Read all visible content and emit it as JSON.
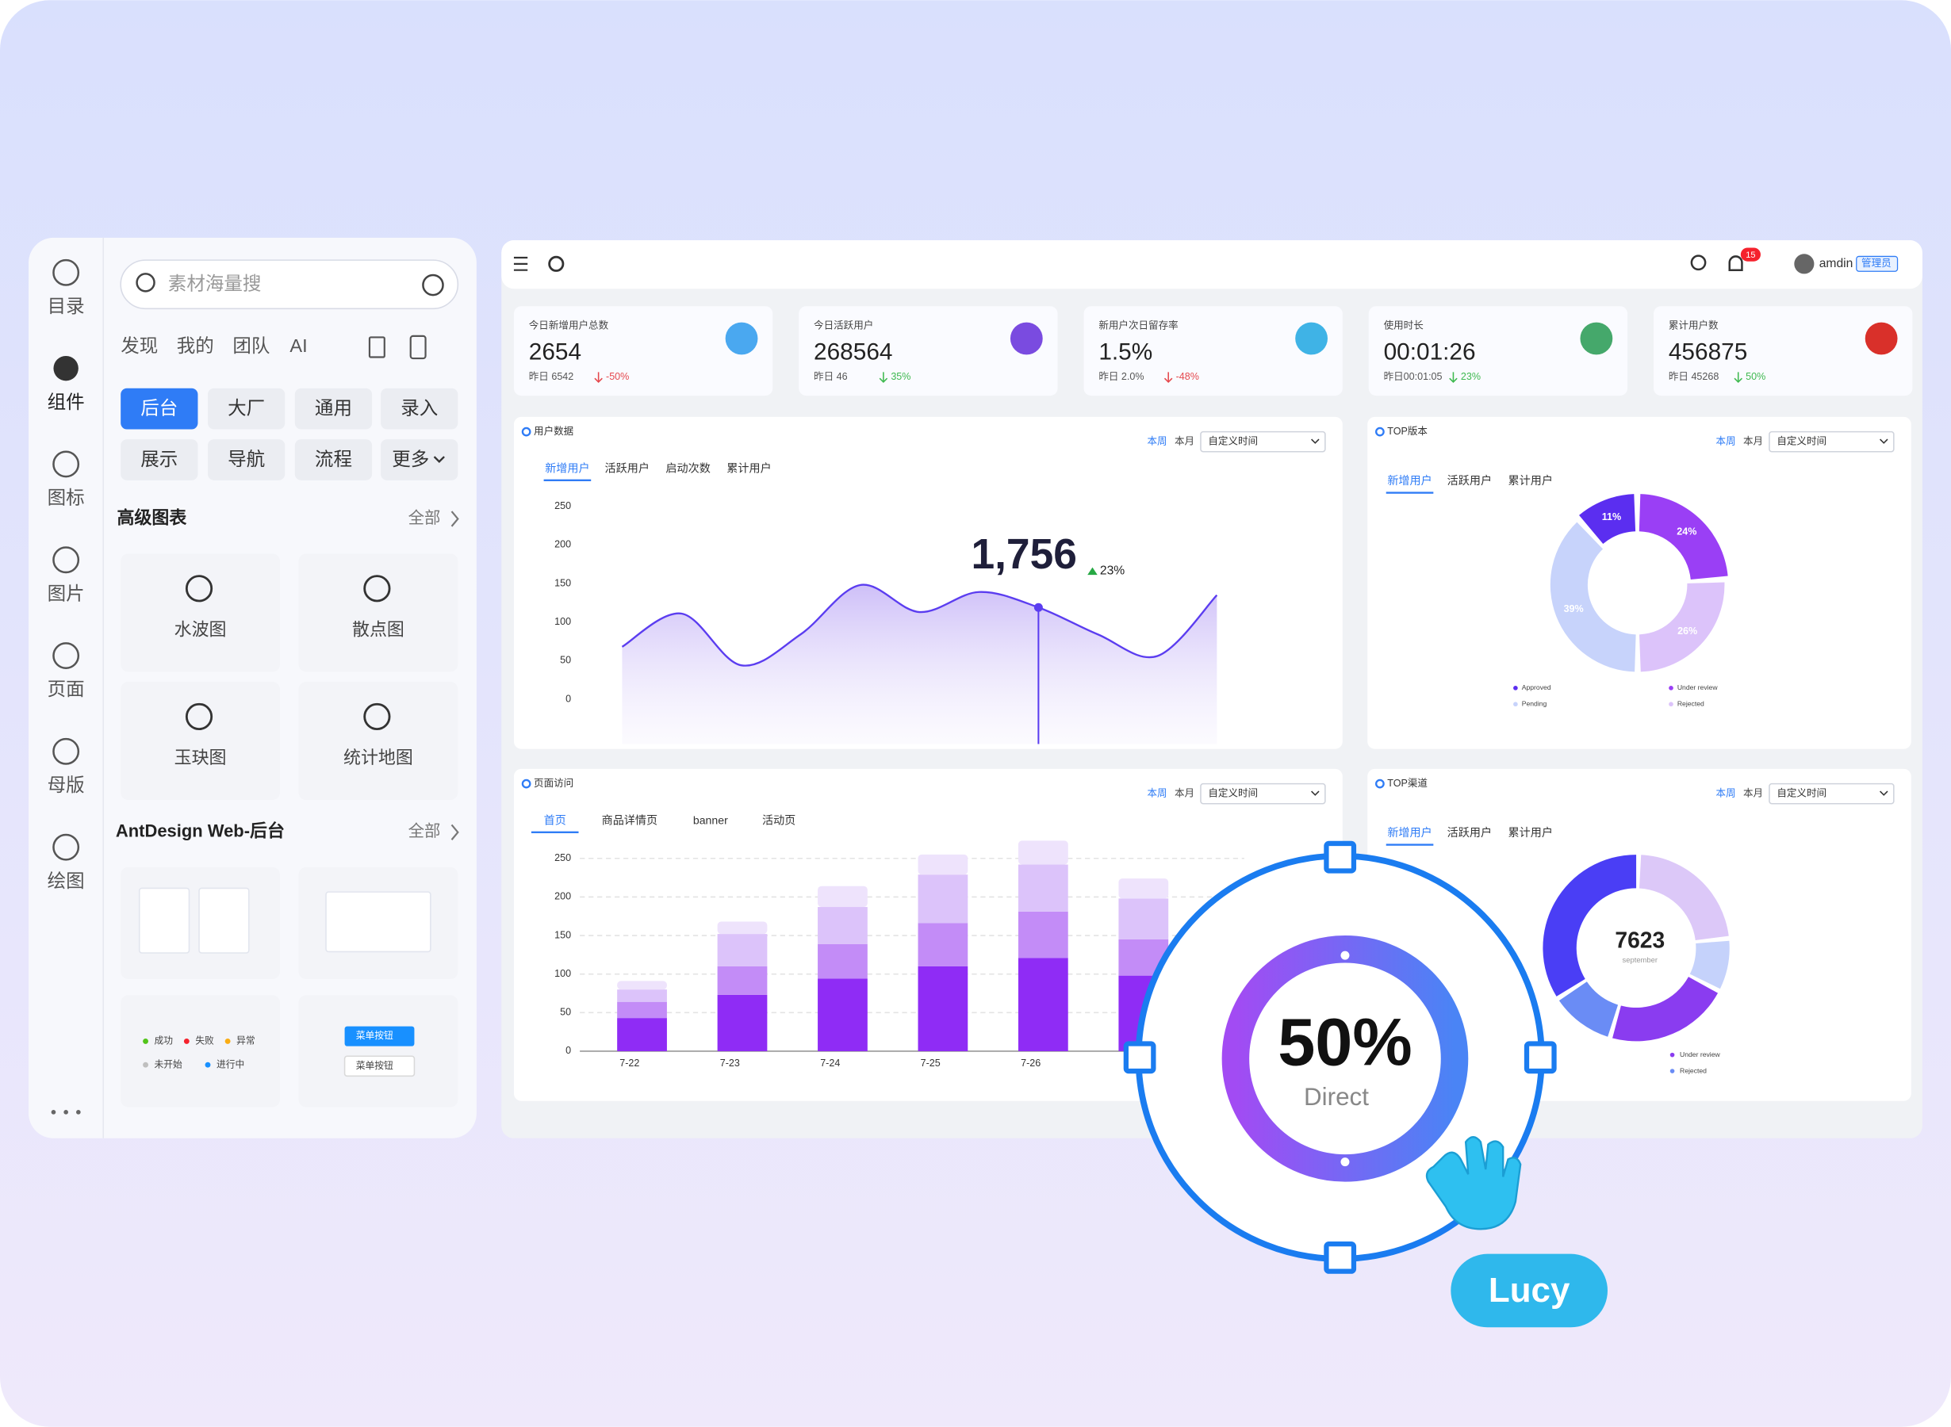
{
  "sidebar": {
    "nav": [
      "目录",
      "组件",
      "图标",
      "图片",
      "页面",
      "母版",
      "绘图"
    ]
  },
  "panel": {
    "search_placeholder": "素材海量搜",
    "tabs": [
      "发现",
      "我的",
      "团队",
      "AI"
    ],
    "chips": [
      "后台",
      "大厂",
      "通用",
      "录入",
      "展示",
      "导航",
      "流程",
      "更多"
    ],
    "section1": {
      "title": "高级图表",
      "all": "全部",
      "items": [
        "水波图",
        "散点图",
        "玉玦图",
        "统计地图"
      ]
    },
    "section2": {
      "title": "AntDesign Web-后台",
      "all": "全部"
    },
    "status_legend": [
      "成功",
      "失败",
      "异常",
      "未开始",
      "进行中"
    ],
    "menu_buttons": [
      "菜单按钮",
      "菜单按钮"
    ]
  },
  "header": {
    "badge": "15",
    "user": "amdin",
    "role": "管理员"
  },
  "stats": [
    {
      "label": "今日新增用户总数",
      "value": "2654",
      "sub": "昨日 6542",
      "change": "-50%",
      "color": "#4aa8f0",
      "change_color": "#e5484d"
    },
    {
      "label": "今日活跃用户",
      "value": "268564",
      "sub": "昨日 46",
      "change": "35%",
      "color": "#7a4be0",
      "change_color": "#3fb950"
    },
    {
      "label": "新用户次日留存率",
      "value": "1.5%",
      "sub": "昨日 2.0%",
      "change": "-48%",
      "color": "#3fb3e6",
      "change_color": "#e5484d"
    },
    {
      "label": "使用时长",
      "value": "00:01:26",
      "sub": "昨日00:01:05",
      "change": "23%",
      "color": "#45a86b",
      "change_color": "#3fb950"
    },
    {
      "label": "累计用户数",
      "value": "456875",
      "sub": "昨日 45268",
      "change": "50%",
      "color": "#d9302a",
      "change_color": "#3fb950"
    }
  ],
  "user_data": {
    "title": "用户数据",
    "range_tabs": [
      "本周",
      "本月"
    ],
    "select": "自定义时间",
    "tabs": [
      "新增用户",
      "活跃用户",
      "启动次数",
      "累计用户"
    ],
    "ylim": [
      0,
      250
    ],
    "yticks": [
      0,
      50,
      100,
      150,
      200,
      250
    ],
    "values": [
      68,
      111,
      44,
      84,
      148,
      113,
      139,
      119,
      84,
      56,
      135
    ],
    "color": "#5b3df0",
    "highlight": "1,756",
    "highlight_change": "23%"
  },
  "top_version": {
    "title": "TOP版本",
    "range_tabs": [
      "本周",
      "本月"
    ],
    "select": "自定义时间",
    "tabs": [
      "新增用户",
      "活跃用户",
      "累计用户"
    ],
    "values": [
      11,
      24,
      26,
      39
    ],
    "value_labels": [
      "11%",
      "24%",
      "26%",
      "39%"
    ],
    "colors": [
      "#5b2ef0",
      "#9a3ff5",
      "#dcc3fa",
      "#c7d3fb"
    ],
    "legend": [
      "Approved",
      "Under review",
      "Pending",
      "Rejected"
    ]
  },
  "page_visits": {
    "title": "页面访问",
    "range_tabs": [
      "本周",
      "本月"
    ],
    "select": "自定义时间",
    "tabs": [
      "首页",
      "商品详情页",
      "banner",
      "活动页"
    ],
    "categories": [
      "7-22",
      "7-23",
      "7-24",
      "7-25",
      "7-26",
      null
    ],
    "ylim": [
      0,
      250
    ],
    "yticks": [
      0,
      50,
      100,
      150,
      200,
      250
    ],
    "series": [
      {
        "color": "#8f2cf5",
        "values": [
          43,
          73,
          94,
          110,
          121,
          98
        ]
      },
      {
        "color": "#c38cf7",
        "values": [
          21,
          37,
          45,
          56,
          60,
          47
        ]
      },
      {
        "color": "#dcc3fa",
        "values": [
          16,
          42,
          48,
          63,
          61,
          53
        ]
      },
      {
        "color": "#eee3fc",
        "values": [
          11,
          16,
          27,
          26,
          31,
          26
        ]
      }
    ]
  },
  "top_channel": {
    "title": "TOP渠道",
    "range_tabs": [
      "本周",
      "本月"
    ],
    "select": "自定义时间",
    "tabs": [
      "新增用户",
      "活跃用户",
      "累计用户"
    ],
    "total": "7623",
    "period": "september",
    "values": [
      21,
      8,
      20,
      10,
      32
    ],
    "colors": [
      "#dcc8f8",
      "#c5d2fb",
      "#8a3cf0",
      "#6a8cf5",
      "#4a3ef5"
    ],
    "legend": [
      "Under review",
      "Rejected"
    ]
  },
  "overlay": {
    "percent": "50%",
    "label": "Direct",
    "user": "Lucy"
  }
}
